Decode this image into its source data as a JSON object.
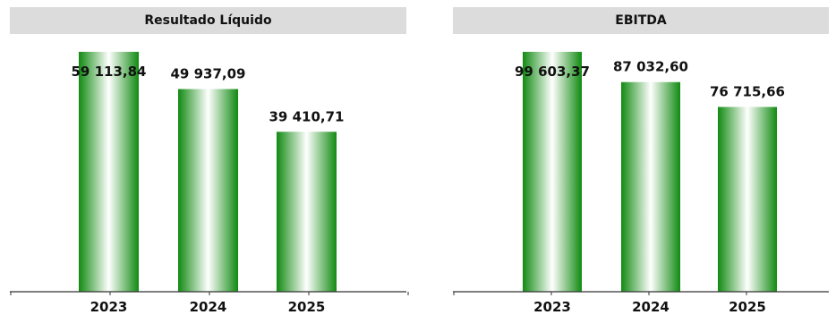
{
  "chart_data": [
    {
      "type": "bar",
      "title": "Resultado Líquido",
      "categories": [
        "2023",
        "2024",
        "2025"
      ],
      "values": [
        59113.84,
        49937.09,
        39410.71
      ],
      "value_labels": [
        "59 113,84",
        "49 937,09",
        "39 410,71"
      ],
      "ylim": [
        0,
        63500
      ],
      "grid": false,
      "legend": "none",
      "colors": {
        "bar_dark": "#118a11",
        "bar_light": "#ffffff",
        "header_bg": "#dcdcdc"
      }
    },
    {
      "type": "bar",
      "title": "EBITDA",
      "categories": [
        "2023",
        "2024",
        "2025"
      ],
      "values": [
        99603.37,
        87032.6,
        76715.66
      ],
      "value_labels": [
        "99 603,37",
        "87 032,60",
        "76 715,66"
      ],
      "ylim": [
        0,
        107000
      ],
      "grid": false,
      "legend": "none",
      "colors": {
        "bar_dark": "#118a11",
        "bar_light": "#ffffff",
        "header_bg": "#dcdcdc"
      }
    }
  ]
}
